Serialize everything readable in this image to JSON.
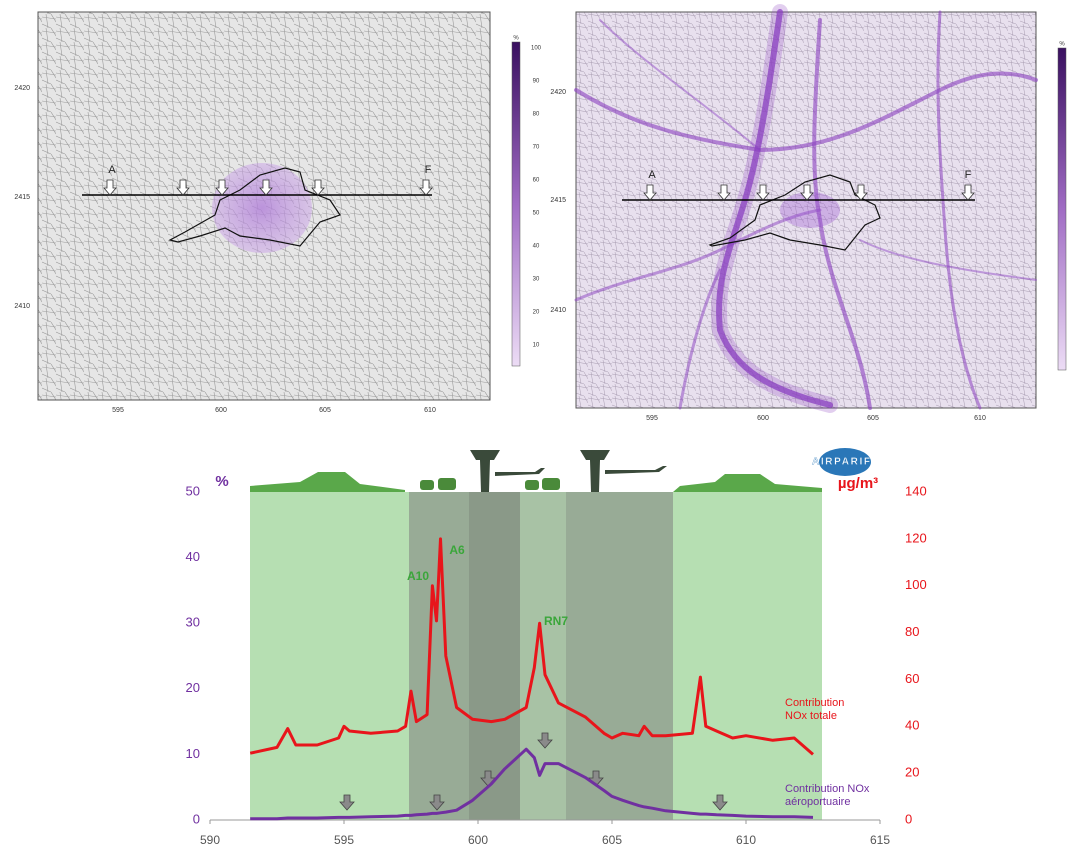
{
  "maps": [
    {
      "xticks": [
        595,
        600,
        605,
        610
      ],
      "yticks": [
        2420,
        2415,
        2410
      ],
      "point_labels": [
        "A",
        "F"
      ],
      "colorbar": {
        "unit": "%",
        "labels": [
          100,
          90,
          80,
          70,
          60,
          50,
          40,
          30,
          20,
          10
        ]
      }
    },
    {
      "xticks": [
        595,
        600,
        605,
        610
      ],
      "yticks": [
        2420,
        2415,
        2410
      ],
      "point_labels": [
        "A",
        "F"
      ],
      "colorbar": {
        "unit": "%"
      }
    }
  ],
  "chart_data": {
    "type": "line",
    "logo": "AIRPARIF",
    "ylabel": "%",
    "y2label": "µg/m³",
    "x": [
      591.5,
      592.5,
      592.9,
      593.2,
      594,
      594.8,
      595,
      595.2,
      596,
      597,
      597.3,
      597.5,
      597.7,
      598.1,
      598.3,
      598.45,
      598.6,
      598.8,
      599.2,
      599.8,
      600.5,
      601,
      601.8,
      602.1,
      602.3,
      602.5,
      603,
      604,
      604.7,
      605,
      605.4,
      606,
      606.2,
      606.5,
      607,
      608,
      608.3,
      608.5,
      608.9,
      609.5,
      610,
      611,
      611.8,
      612.5
    ],
    "series": [
      {
        "name": "Contribution NOx totale",
        "color": "#e8151b",
        "axis": "y2",
        "values": [
          28.5,
          31,
          39,
          32,
          32,
          35,
          40,
          38,
          37,
          38,
          40,
          55,
          42,
          45,
          100,
          85,
          120,
          70,
          48,
          43,
          42,
          43,
          48,
          65,
          84,
          62,
          50,
          44,
          37,
          35,
          37,
          36,
          40,
          36,
          36,
          37,
          61,
          40,
          38,
          35,
          36,
          34,
          35,
          28
        ]
      },
      {
        "name": "Contribution NOx aéroportuaire",
        "color": "#7030a0",
        "values": [
          0.2,
          0.2,
          0.3,
          0.3,
          0.3,
          0.4,
          0.4,
          0.4,
          0.5,
          0.6,
          0.7,
          0.7,
          0.8,
          0.9,
          1.0,
          1.0,
          1.1,
          1.2,
          1.5,
          3,
          5.5,
          7.8,
          10.8,
          9.5,
          6.8,
          8.6,
          8.6,
          6.5,
          4.5,
          3.6,
          3,
          2.2,
          2,
          1.8,
          1.4,
          1,
          0.9,
          0.9,
          0.8,
          0.7,
          0.6,
          0.5,
          0.5,
          0.4
        ]
      }
    ],
    "annotations": [
      "A10",
      "A6",
      "RN7"
    ],
    "xlim": [
      590,
      615
    ],
    "xticks": [
      590,
      595,
      600,
      605,
      610,
      615
    ],
    "ylim": [
      0,
      50
    ],
    "yticks": [
      0,
      10,
      20,
      30,
      40,
      50
    ],
    "y2lim": [
      0,
      140
    ],
    "y2ticks": [
      0,
      20,
      40,
      60,
      80,
      100,
      120,
      140
    ]
  }
}
